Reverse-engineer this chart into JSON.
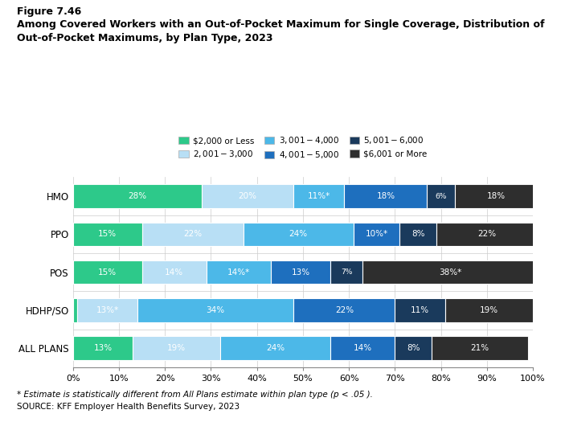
{
  "title_line1": "Figure 7.46",
  "title_line2a": "Among Covered Workers with an Out-of-Pocket Maximum for Single Coverage, Distribution of",
  "title_line2b": "Out-of-Pocket Maximums, by Plan Type, 2023",
  "plan_types": [
    "HMO",
    "PPO",
    "POS",
    "HDHP/SO",
    "ALL PLANS"
  ],
  "categories": [
    "$2,000 or Less",
    "$2,001 - $3,000",
    "$3,001 - $4,000",
    "$4,001 - $5,000",
    "$5,001- $6,000",
    "$6,001 or More"
  ],
  "colors": [
    "#2dc98a",
    "#b8dff5",
    "#4cb8e8",
    "#1e6fbe",
    "#1a3a5c",
    "#2e2e2e"
  ],
  "data": {
    "HMO": [
      28,
      20,
      11,
      18,
      6,
      18
    ],
    "PPO": [
      15,
      22,
      24,
      10,
      8,
      22
    ],
    "POS": [
      15,
      14,
      14,
      13,
      7,
      38
    ],
    "HDHP/SO": [
      1,
      13,
      34,
      22,
      11,
      19
    ],
    "ALL PLANS": [
      13,
      19,
      24,
      14,
      8,
      21
    ]
  },
  "labels": {
    "HMO": [
      "28%",
      "20%",
      "11%*",
      "18%",
      "6%",
      "18%"
    ],
    "PPO": [
      "15%",
      "22%",
      "24%",
      "10%*",
      "8%",
      "22%"
    ],
    "POS": [
      "15%",
      "14%",
      "14%*",
      "13%",
      "7%",
      "38%*"
    ],
    "HDHP/SO": [
      "",
      "13%*",
      "34%",
      "22%",
      "11%",
      "19%"
    ],
    "ALL PLANS": [
      "13%",
      "19%",
      "24%",
      "14%",
      "8%",
      "21%"
    ]
  },
  "background_color": "#ffffff",
  "bar_height": 0.62,
  "footnote1": "* Estimate is statistically different from All Plans estimate within plan type (p < .05 ).",
  "footnote2": "SOURCE: KFF Employer Health Benefits Survey, 2023"
}
